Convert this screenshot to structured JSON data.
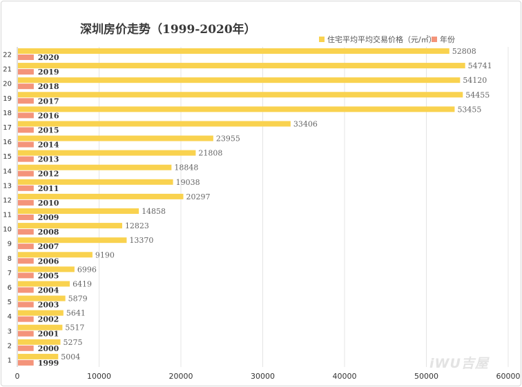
{
  "chart_data": {
    "type": "bar",
    "orientation": "horizontal",
    "title": "深圳房价走势（1999-2020年）",
    "categories": [
      "1",
      "2",
      "3",
      "4",
      "5",
      "6",
      "7",
      "8",
      "9",
      "10",
      "11",
      "12",
      "13",
      "14",
      "15",
      "16",
      "17",
      "18",
      "19",
      "20",
      "21",
      "22"
    ],
    "series": [
      {
        "name": "住宅平均平均交易价格（元/㎡）",
        "color": "#f9d24f",
        "values": [
          5004,
          5275,
          5517,
          5641,
          5879,
          6419,
          6996,
          9190,
          13370,
          12823,
          14858,
          20297,
          19038,
          18848,
          21808,
          23955,
          33406,
          53455,
          54455,
          54120,
          54741,
          52808
        ]
      },
      {
        "name": "年份",
        "color": "#f4947a",
        "values": [
          1999,
          2000,
          2001,
          2002,
          2003,
          2004,
          2005,
          2006,
          2007,
          2008,
          2009,
          2010,
          2011,
          2012,
          2013,
          2014,
          2015,
          2016,
          2017,
          2018,
          2019,
          2020
        ]
      }
    ],
    "xlim": [
      0,
      60000
    ],
    "xticks": [
      0,
      10000,
      20000,
      30000,
      40000,
      50000,
      60000
    ],
    "grid": true,
    "legend_position": "top-right"
  },
  "watermark": "iWU吉屋"
}
